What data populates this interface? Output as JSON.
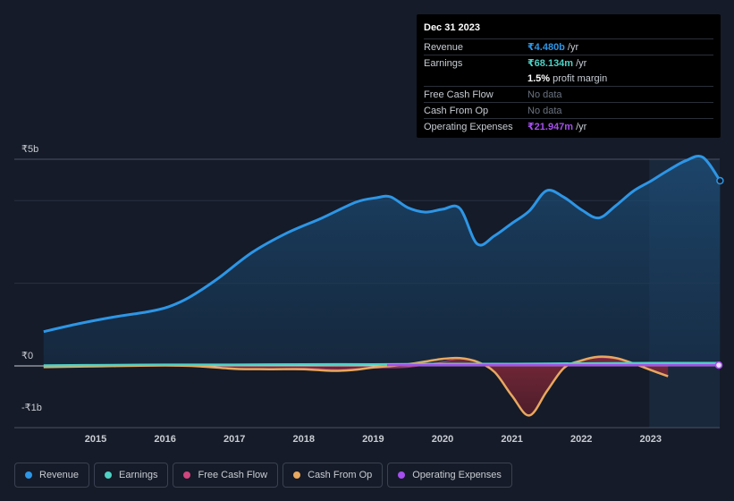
{
  "tooltip": {
    "date": "Dec 31 2023",
    "rows": {
      "revenue": {
        "label": "Revenue",
        "value": "₹4.480b",
        "unit": "/yr"
      },
      "earnings": {
        "label": "Earnings",
        "value": "₹68.134m",
        "unit": "/yr"
      },
      "margin": {
        "value": "1.5%",
        "text": "profit margin"
      },
      "fcf": {
        "label": "Free Cash Flow",
        "value": "No data"
      },
      "cfo": {
        "label": "Cash From Op",
        "value": "No data"
      },
      "opex": {
        "label": "Operating Expenses",
        "value": "₹21.947m",
        "unit": "/yr"
      }
    }
  },
  "colors": {
    "revenue": "#2d96e6",
    "earnings": "#4fd1c5",
    "fcf": "#d0457d",
    "cfo": "#e8a85f",
    "opex": "#a64ff0"
  },
  "legend": [
    {
      "key": "revenue",
      "label": "Revenue"
    },
    {
      "key": "earnings",
      "label": "Earnings"
    },
    {
      "key": "fcf",
      "label": "Free Cash Flow"
    },
    {
      "key": "cfo",
      "label": "Cash From Op"
    },
    {
      "key": "opex",
      "label": "Operating Expenses"
    }
  ],
  "chart_data": {
    "type": "area",
    "title": "",
    "xlabel": "",
    "ylabel": "",
    "ylim": [
      -1.5,
      5.0
    ],
    "xlim": [
      2014.1,
      2024.0
    ],
    "y_ticks": [
      {
        "value": 5,
        "label": "₹5b"
      },
      {
        "value": 0,
        "label": "₹0"
      },
      {
        "value": -1,
        "label": "-₹1b"
      }
    ],
    "x_ticks": [
      {
        "value": 2015,
        "label": "2015"
      },
      {
        "value": 2016,
        "label": "2016"
      },
      {
        "value": 2017,
        "label": "2017"
      },
      {
        "value": 2018,
        "label": "2018"
      },
      {
        "value": 2019,
        "label": "2019"
      },
      {
        "value": 2020,
        "label": "2020"
      },
      {
        "value": 2021,
        "label": "2021"
      },
      {
        "value": 2022,
        "label": "2022"
      },
      {
        "value": 2023,
        "label": "2023"
      }
    ],
    "highlight_from": 2022.98,
    "series": [
      {
        "name": "Revenue",
        "key": "revenue",
        "fill": true,
        "x": [
          2014.25,
          2014.75,
          2015.25,
          2015.75,
          2016.05,
          2016.35,
          2016.75,
          2017.25,
          2017.75,
          2018.25,
          2018.75,
          2019.05,
          2019.25,
          2019.5,
          2019.75,
          2020.0,
          2020.25,
          2020.5,
          2020.75,
          2021.0,
          2021.25,
          2021.5,
          2021.75,
          2022.0,
          2022.25,
          2022.5,
          2022.75,
          2023.0,
          2023.25,
          2023.5,
          2023.75,
          2024.0
        ],
        "values": [
          0.83,
          1.02,
          1.18,
          1.31,
          1.43,
          1.66,
          2.1,
          2.74,
          3.21,
          3.57,
          3.96,
          4.07,
          4.09,
          3.83,
          3.72,
          3.79,
          3.81,
          2.95,
          3.15,
          3.45,
          3.75,
          4.24,
          4.08,
          3.78,
          3.58,
          3.88,
          4.23,
          4.47,
          4.73,
          4.96,
          5.05,
          4.48
        ]
      },
      {
        "name": "Earnings",
        "key": "earnings",
        "fill": false,
        "x": [
          2014.25,
          2015.0,
          2016.0,
          2017.0,
          2018.0,
          2019.0,
          2020.0,
          2021.0,
          2022.0,
          2023.0,
          2024.0
        ],
        "values": [
          0.01,
          0.02,
          0.03,
          0.03,
          0.04,
          0.04,
          0.05,
          0.05,
          0.06,
          0.07,
          0.07
        ]
      },
      {
        "name": "Free Cash Flow",
        "key": "fcf",
        "fill": true,
        "x": [
          2014.25,
          2015.0,
          2016.0,
          2016.5,
          2017.0,
          2017.5,
          2018.0,
          2018.5,
          2019.0,
          2019.5,
          2020.0,
          2020.25,
          2020.5,
          2020.75,
          2021.0,
          2021.25,
          2021.5,
          2021.75,
          2022.0,
          2022.25,
          2022.5,
          2022.75,
          2023.0,
          2023.25
        ],
        "values": [
          -0.03,
          -0.01,
          0.01,
          -0.01,
          -0.07,
          -0.08,
          -0.06,
          -0.09,
          -0.05,
          -0.03,
          0.1,
          0.17,
          0.1,
          -0.15,
          -0.72,
          -1.2,
          -0.62,
          -0.05,
          0.13,
          0.2,
          0.17,
          0.05,
          -0.1,
          -0.25
        ]
      },
      {
        "name": "Cash From Op",
        "key": "cfo",
        "fill": false,
        "x": [
          2014.25,
          2015.0,
          2016.0,
          2016.5,
          2017.0,
          2017.5,
          2018.0,
          2018.4,
          2018.7,
          2019.0,
          2019.5,
          2019.8,
          2020.0,
          2020.25,
          2020.5,
          2020.75,
          2021.0,
          2021.25,
          2021.5,
          2021.75,
          2022.0,
          2022.25,
          2022.5,
          2022.75,
          2023.0,
          2023.25
        ],
        "values": [
          -0.03,
          -0.01,
          0.01,
          -0.01,
          -0.07,
          -0.08,
          -0.08,
          -0.12,
          -0.1,
          -0.04,
          0.04,
          0.12,
          0.17,
          0.19,
          0.1,
          -0.15,
          -0.72,
          -1.2,
          -0.62,
          -0.05,
          0.13,
          0.22,
          0.19,
          0.06,
          -0.1,
          -0.25
        ]
      },
      {
        "name": "Operating Expenses",
        "key": "opex",
        "fill": false,
        "x": [
          2019.2,
          2020.0,
          2021.0,
          2022.0,
          2023.0,
          2024.0
        ],
        "values": [
          0.02,
          0.02,
          0.02,
          0.02,
          0.02,
          0.02
        ]
      }
    ]
  }
}
